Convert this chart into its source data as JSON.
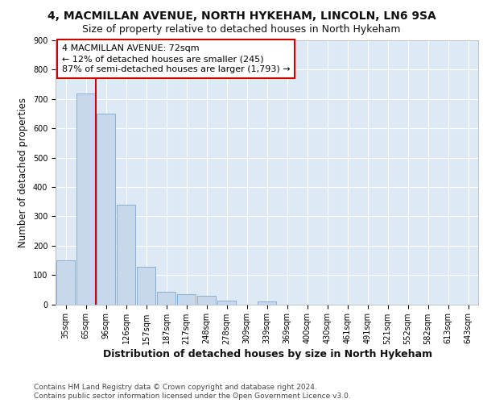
{
  "title_line1": "4, MACMILLAN AVENUE, NORTH HYKEHAM, LINCOLN, LN6 9SA",
  "title_line2": "Size of property relative to detached houses in North Hykeham",
  "xlabel": "Distribution of detached houses by size in North Hykeham",
  "ylabel": "Number of detached properties",
  "categories": [
    "35sqm",
    "65sqm",
    "96sqm",
    "126sqm",
    "157sqm",
    "187sqm",
    "217sqm",
    "248sqm",
    "278sqm",
    "309sqm",
    "339sqm",
    "369sqm",
    "400sqm",
    "430sqm",
    "461sqm",
    "491sqm",
    "521sqm",
    "552sqm",
    "582sqm",
    "613sqm",
    "643sqm"
  ],
  "values": [
    150,
    720,
    650,
    340,
    128,
    42,
    35,
    28,
    13,
    0,
    10,
    0,
    0,
    0,
    0,
    0,
    0,
    0,
    0,
    0,
    0
  ],
  "bar_color": "#c8d8ec",
  "bar_edge_color": "#8aafd4",
  "red_line_color": "#cc0000",
  "red_line_x": 1.5,
  "annotation_line1": "4 MACMILLAN AVENUE: 72sqm",
  "annotation_line2": "← 12% of detached houses are smaller (245)",
  "annotation_line3": "87% of semi-detached houses are larger (1,793) →",
  "annotation_box_facecolor": "#ffffff",
  "annotation_box_edgecolor": "#cc0000",
  "ylim": [
    0,
    900
  ],
  "yticks": [
    0,
    100,
    200,
    300,
    400,
    500,
    600,
    700,
    800,
    900
  ],
  "plot_bg_color": "#ddeaf5",
  "fig_bg_color": "#ffffff",
  "grid_color": "#ffffff",
  "title_fontsize": 10,
  "subtitle_fontsize": 9,
  "ylabel_fontsize": 8.5,
  "xlabel_fontsize": 9,
  "tick_fontsize": 7,
  "annotation_fontsize": 8,
  "footer_fontsize": 6.5,
  "footer_line1": "Contains HM Land Registry data © Crown copyright and database right 2024.",
  "footer_line2": "Contains public sector information licensed under the Open Government Licence v3.0."
}
